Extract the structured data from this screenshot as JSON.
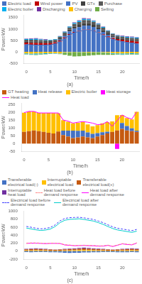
{
  "chart_data": [
    {
      "type": "bar",
      "title": "(a)",
      "xlabel": "Time/h",
      "ylabel": "Power/kW",
      "x": [
        0,
        1,
        2,
        3,
        4,
        5,
        6,
        7,
        8,
        9,
        10,
        11,
        12,
        13,
        14,
        15,
        16,
        17,
        18,
        19,
        20,
        21,
        22,
        23
      ],
      "xlim": [
        -0.5,
        23.5
      ],
      "xticks": [
        0,
        5,
        10,
        15,
        20
      ],
      "ylim": [
        -500,
        1600
      ],
      "yticks": [
        -500,
        0,
        500,
        1000,
        1500
      ],
      "stacked": true,
      "grid": false,
      "legend": "upper left",
      "series": [
        {
          "name": "Electric load",
          "color": "#4472c4",
          "values": [
            320,
            305,
            295,
            290,
            295,
            305,
            350,
            440,
            580,
            740,
            840,
            890,
            950,
            960,
            910,
            830,
            730,
            630,
            550,
            490,
            450,
            410,
            385,
            355
          ]
        },
        {
          "name": "Wind power",
          "color": "#c00000",
          "values": [
            80,
            85,
            95,
            90,
            85,
            78,
            68,
            58,
            48,
            38,
            32,
            28,
            22,
            18,
            22,
            28,
            38,
            48,
            58,
            68,
            78,
            83,
            88,
            92
          ]
        },
        {
          "name": "PV",
          "color": "#4472c4",
          "values": [
            0,
            0,
            0,
            0,
            0,
            0,
            8,
            35,
            75,
            115,
            145,
            165,
            175,
            170,
            155,
            135,
            105,
            65,
            28,
            4,
            0,
            0,
            0,
            0
          ]
        },
        {
          "name": "GTx",
          "color": "#404040",
          "values": [
            55,
            60,
            65,
            60,
            55,
            52,
            48,
            58,
            68,
            78,
            88,
            98,
            108,
            102,
            98,
            88,
            78,
            68,
            62,
            58,
            52,
            58,
            62,
            68
          ]
        },
        {
          "name": "Purchase",
          "color": "#595959",
          "values": [
            75,
            80,
            75,
            70,
            68,
            62,
            58,
            68,
            78,
            98,
            118,
            128,
            138,
            132,
            128,
            118,
            108,
            98,
            88,
            82,
            78,
            72,
            68,
            72
          ]
        },
        {
          "name": "Electric boiler",
          "color": "#00b0f0",
          "values": [
            28,
            32,
            38,
            32,
            28,
            22,
            18,
            22,
            28,
            32,
            38,
            42,
            48,
            42,
            38,
            32,
            28,
            22,
            18,
            22,
            28,
            32,
            38,
            32
          ]
        },
        {
          "name": "Discharging",
          "color": "#7030a0",
          "values": [
            18,
            22,
            28,
            22,
            18,
            12,
            8,
            12,
            18,
            22,
            28,
            32,
            38,
            32,
            28,
            22,
            18,
            12,
            8,
            12,
            18,
            22,
            28,
            22
          ]
        },
        {
          "name": "Charging",
          "color": "#ffc000",
          "values": [
            -75,
            -80,
            -75,
            -70,
            -65,
            -60,
            -58,
            -68,
            -28,
            -18,
            -8,
            -12,
            -18,
            -22,
            -18,
            -12,
            -28,
            -38,
            -58,
            -68,
            -75,
            -70,
            -65,
            -70
          ]
        },
        {
          "color": "#00b0f0",
          "values": [
            -28,
            -32,
            -38,
            -32,
            -28,
            -22,
            -18,
            -22,
            -12,
            -8,
            -4,
            -6,
            -8,
            -10,
            -8,
            -6,
            -12,
            -18,
            -28,
            -32,
            -38,
            -32,
            -28,
            -32
          ]
        },
        {
          "name": "Selling",
          "color": "#70ad47",
          "values": [
            -18,
            -22,
            -28,
            -22,
            -18,
            -12,
            -8,
            -12,
            -95,
            -145,
            -195,
            -175,
            -155,
            -135,
            -125,
            -115,
            -95,
            -75,
            -48,
            -28,
            -18,
            -22,
            -28,
            -22
          ]
        },
        {
          "type": "line",
          "line_style": "solid",
          "color": "#4472c4",
          "values": [
            320,
            305,
            295,
            290,
            295,
            305,
            350,
            440,
            580,
            740,
            840,
            890,
            950,
            960,
            910,
            830,
            730,
            630,
            550,
            490,
            450,
            410,
            385,
            355
          ]
        }
      ]
    },
    {
      "type": "bar",
      "title": "(b)",
      "xlabel": "Time/h",
      "ylabel": "Power/kW",
      "x": [
        0,
        1,
        2,
        3,
        4,
        5,
        6,
        7,
        8,
        9,
        10,
        11,
        12,
        13,
        14,
        15,
        16,
        17,
        18,
        19,
        20,
        21,
        22,
        23
      ],
      "xlim": [
        -0.5,
        23.5
      ],
      "xticks": [
        0,
        5,
        10,
        15,
        20
      ],
      "ylim": [
        -50,
        260
      ],
      "yticks": [
        -50,
        0,
        50,
        100,
        150,
        200,
        250
      ],
      "stacked": true,
      "grid": false,
      "legend": "upper left",
      "series": [
        {
          "name": "GT heating",
          "color": "#c55a11",
          "values": [
            75,
            80,
            85,
            80,
            75,
            70,
            65,
            78,
            55,
            45,
            35,
            40,
            45,
            40,
            35,
            45,
            55,
            65,
            75,
            85,
            95,
            85,
            80,
            75
          ]
        },
        {
          "name": "Heat release",
          "color": "#4472c4",
          "values": [
            0,
            0,
            0,
            0,
            0,
            0,
            0,
            0,
            28,
            38,
            48,
            42,
            38,
            32,
            28,
            22,
            18,
            12,
            0,
            0,
            38,
            28,
            18,
            8
          ]
        },
        {
          "name": "Electric boiler",
          "color": "#ffc000",
          "values": [
            125,
            128,
            122,
            118,
            122,
            128,
            132,
            118,
            68,
            58,
            48,
            52,
            58,
            52,
            48,
            52,
            58,
            62,
            68,
            98,
            52,
            52,
            58,
            122
          ]
        },
        {
          "name": "Heat storage",
          "color": "#ff00ff",
          "values": [
            0,
            0,
            0,
            0,
            0,
            0,
            0,
            0,
            0,
            0,
            0,
            0,
            0,
            0,
            0,
            0,
            0,
            0,
            0,
            -35,
            0,
            0,
            0,
            0
          ]
        },
        {
          "name": "Heat load",
          "type": "line",
          "line_style": "solid",
          "color": "#ff00ff",
          "values": [
            200,
            208,
            208,
            198,
            198,
            198,
            198,
            198,
            152,
            145,
            132,
            138,
            142,
            138,
            132,
            122,
            125,
            142,
            112,
            148,
            185,
            168,
            158,
            205
          ]
        }
      ]
    },
    {
      "type": "bar",
      "title": "(c)",
      "xlabel": "Time/h",
      "ylabel": "Power/kW",
      "x": [
        0,
        1,
        2,
        3,
        4,
        5,
        6,
        7,
        8,
        9,
        10,
        11,
        12,
        13,
        14,
        15,
        16,
        17,
        18,
        19,
        20,
        21,
        22,
        23
      ],
      "xlim": [
        -0.5,
        23.5
      ],
      "xticks": [
        0,
        5,
        10,
        15,
        20
      ],
      "ylim": [
        -200,
        1000
      ],
      "yticks": [
        -200,
        0,
        200,
        400,
        600,
        800,
        1000
      ],
      "stacked": true,
      "grid": false,
      "legend": "upper left",
      "series": [
        {
          "name": "Transferable\nelectrical load(-)",
          "color": "#4472c4",
          "values": [
            -22,
            -25,
            -22,
            -20,
            -22,
            -25,
            -28,
            -33,
            -38,
            -42,
            -40,
            -38,
            -33,
            -30,
            -28,
            -25,
            -22,
            -20,
            -22,
            -25,
            -28,
            -25,
            -22,
            -25
          ]
        },
        {
          "name": "Interruptable\nelectrical load",
          "color": "#ffc000",
          "values": [
            18,
            20,
            22,
            20,
            18,
            15,
            12,
            15,
            18,
            20,
            22,
            25,
            28,
            25,
            22,
            20,
            18,
            15,
            12,
            15,
            18,
            20,
            22,
            20
          ]
        },
        {
          "name": "Transferable\nelectrical load(+)",
          "color": "#c55a11",
          "values": [
            28,
            30,
            32,
            30,
            28,
            25,
            22,
            25,
            28,
            30,
            32,
            35,
            38,
            35,
            32,
            30,
            28,
            25,
            22,
            25,
            28,
            30,
            32,
            30
          ]
        },
        {
          "name": "Interruptable\nheat load",
          "color": "#7030a0",
          "values": [
            12,
            14,
            16,
            14,
            12,
            10,
            8,
            10,
            12,
            14,
            16,
            20,
            22,
            20,
            16,
            14,
            12,
            10,
            8,
            10,
            12,
            14,
            16,
            14
          ]
        },
        {
          "name": "Heat load before\ndemand response",
          "type": "line",
          "line_style": "dashed",
          "color": "#ff8888",
          "values": [
            202,
            207,
            207,
            202,
            197,
            202,
            202,
            200,
            162,
            154,
            144,
            147,
            150,
            145,
            142,
            134,
            134,
            152,
            124,
            157,
            190,
            175,
            165,
            210
          ]
        },
        {
          "name": "Heat load after\ndemand response",
          "type": "line",
          "line_style": "solid",
          "color": "#ff00ff",
          "values": [
            195,
            200,
            200,
            195,
            190,
            195,
            195,
            193,
            155,
            147,
            137,
            140,
            143,
            138,
            135,
            127,
            127,
            145,
            117,
            150,
            183,
            168,
            158,
            203
          ]
        },
        {
          "name": "Electrical load before\ndemand response",
          "type": "line",
          "line_style": "dashed",
          "color": "#4040ff",
          "values": [
            620,
            600,
            575,
            560,
            570,
            595,
            660,
            760,
            820,
            840,
            845,
            850,
            835,
            815,
            795,
            755,
            715,
            660,
            610,
            575,
            555,
            535,
            515,
            545
          ]
        },
        {
          "name": "Electrical load after\ndemand response",
          "type": "line",
          "line_style": "solid",
          "color": "#00cccc",
          "values": [
            580,
            558,
            535,
            520,
            530,
            555,
            618,
            715,
            775,
            798,
            804,
            812,
            795,
            775,
            755,
            715,
            672,
            618,
            568,
            532,
            512,
            492,
            472,
            502
          ]
        }
      ]
    }
  ]
}
